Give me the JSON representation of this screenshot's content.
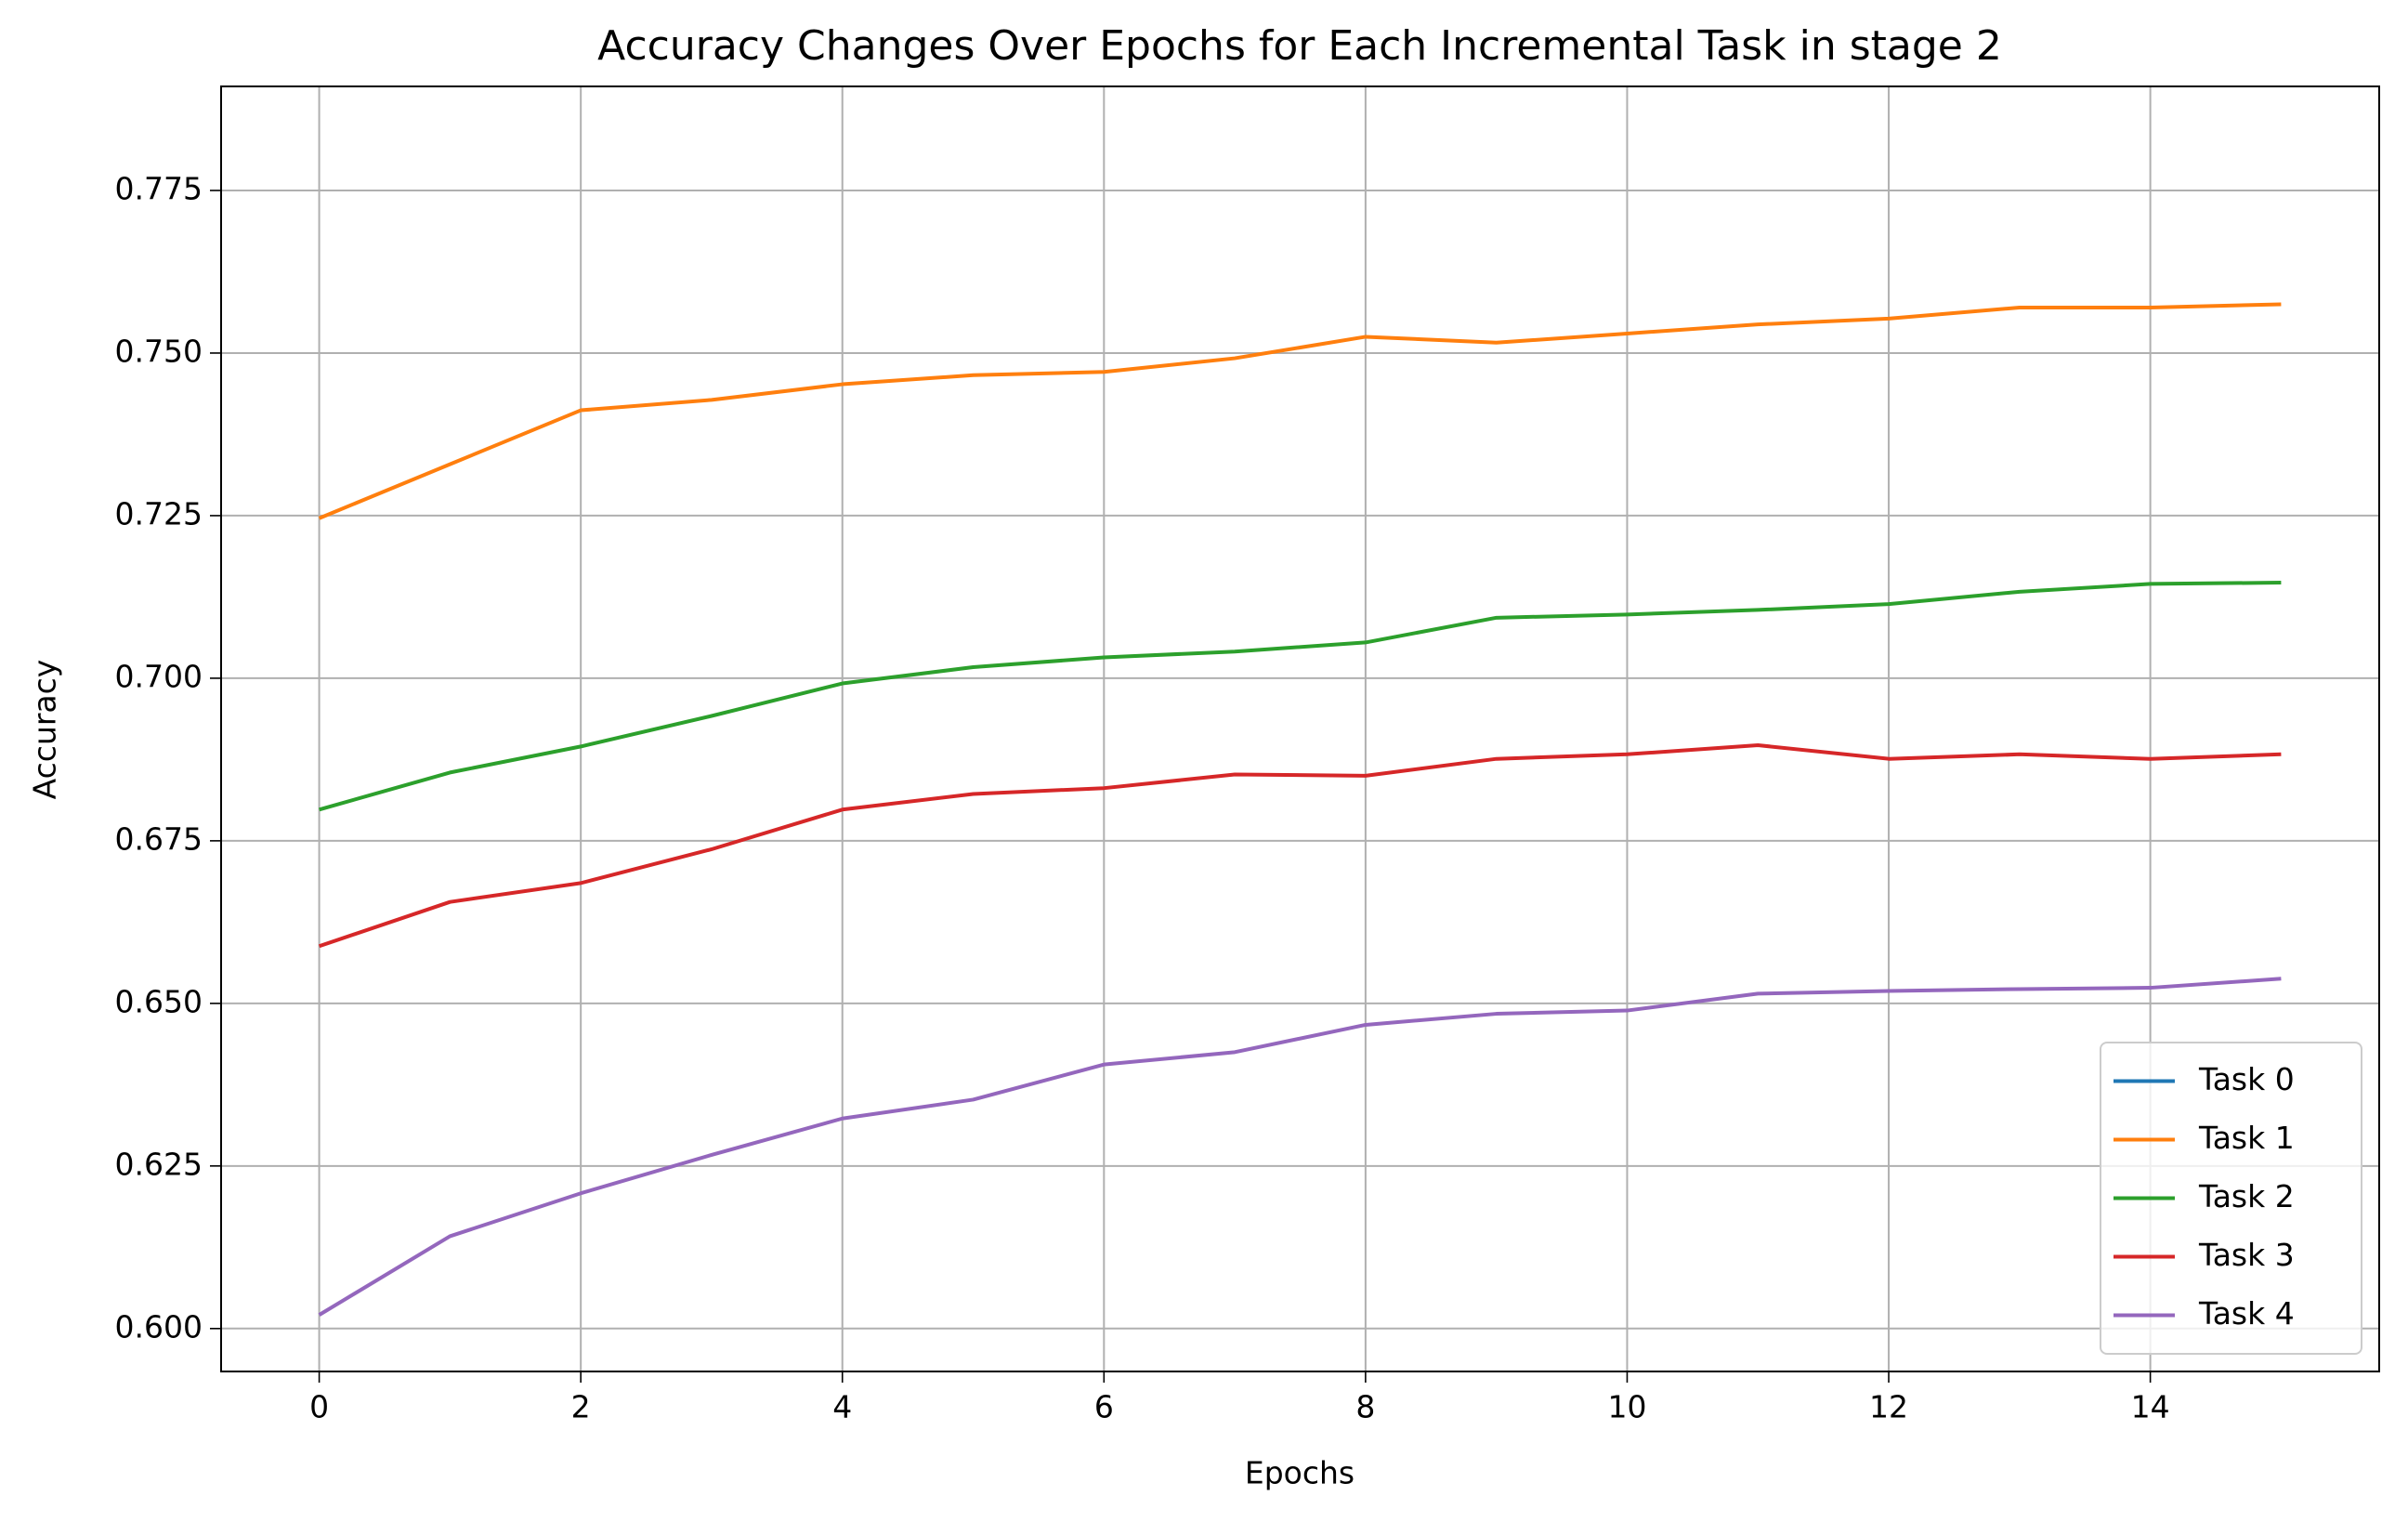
{
  "chart_data": {
    "type": "line",
    "title": "Accuracy Changes Over Epochs for Each Incremental Task in stage 2",
    "xlabel": "Epochs",
    "ylabel": "Accuracy",
    "x": [
      0,
      1,
      2,
      3,
      4,
      5,
      6,
      7,
      8,
      9,
      10,
      11,
      12,
      13,
      14,
      15
    ],
    "series": [
      {
        "name": "Task 0",
        "color": "#1f77b4",
        "values": [
          null,
          null,
          null,
          null,
          null,
          null,
          null,
          null,
          null,
          null,
          null,
          null,
          null,
          null,
          null,
          null
        ]
      },
      {
        "name": "Task 1",
        "color": "#ff7f0e",
        "values": [
          0.7246,
          0.7329,
          0.7412,
          0.7428,
          0.7452,
          0.7466,
          0.7471,
          0.7492,
          0.7525,
          0.7516,
          0.753,
          0.7544,
          0.7553,
          0.757,
          0.757,
          0.7575
        ]
      },
      {
        "name": "Task 2",
        "color": "#2ca02c",
        "values": [
          0.6798,
          0.6855,
          0.6895,
          0.6942,
          0.6992,
          0.7017,
          0.7032,
          0.7041,
          0.7055,
          0.7093,
          0.7098,
          0.7105,
          0.7114,
          0.7133,
          0.7145,
          0.7147
        ]
      },
      {
        "name": "Task 3",
        "color": "#d62728",
        "values": [
          0.6588,
          0.6656,
          0.6685,
          0.6737,
          0.6798,
          0.6822,
          0.6831,
          0.6852,
          0.685,
          0.6876,
          0.6883,
          0.6897,
          0.6876,
          0.6883,
          0.6876,
          0.6883
        ]
      },
      {
        "name": "Task 4",
        "color": "#9467bd",
        "values": [
          0.6021,
          0.6142,
          0.6208,
          0.6267,
          0.6323,
          0.6352,
          0.6406,
          0.6425,
          0.6467,
          0.6484,
          0.6489,
          0.6515,
          0.6519,
          0.6522,
          0.6524,
          0.6538
        ]
      }
    ],
    "xlim": [
      -0.75,
      15.75
    ],
    "xticks": [
      0,
      2,
      4,
      6,
      8,
      10,
      12,
      14
    ],
    "ylim": [
      0.5934,
      0.791
    ],
    "yticks": [
      {
        "value": 0.6,
        "label": "0.600"
      },
      0.625,
      {
        "value": 0.65,
        "label": "0.650"
      },
      0.675,
      {
        "value": 0.7,
        "label": "0.700"
      },
      0.725,
      {
        "value": 0.75,
        "label": "0.750"
      },
      0.775
    ],
    "grid": true,
    "legend": "lower right"
  }
}
